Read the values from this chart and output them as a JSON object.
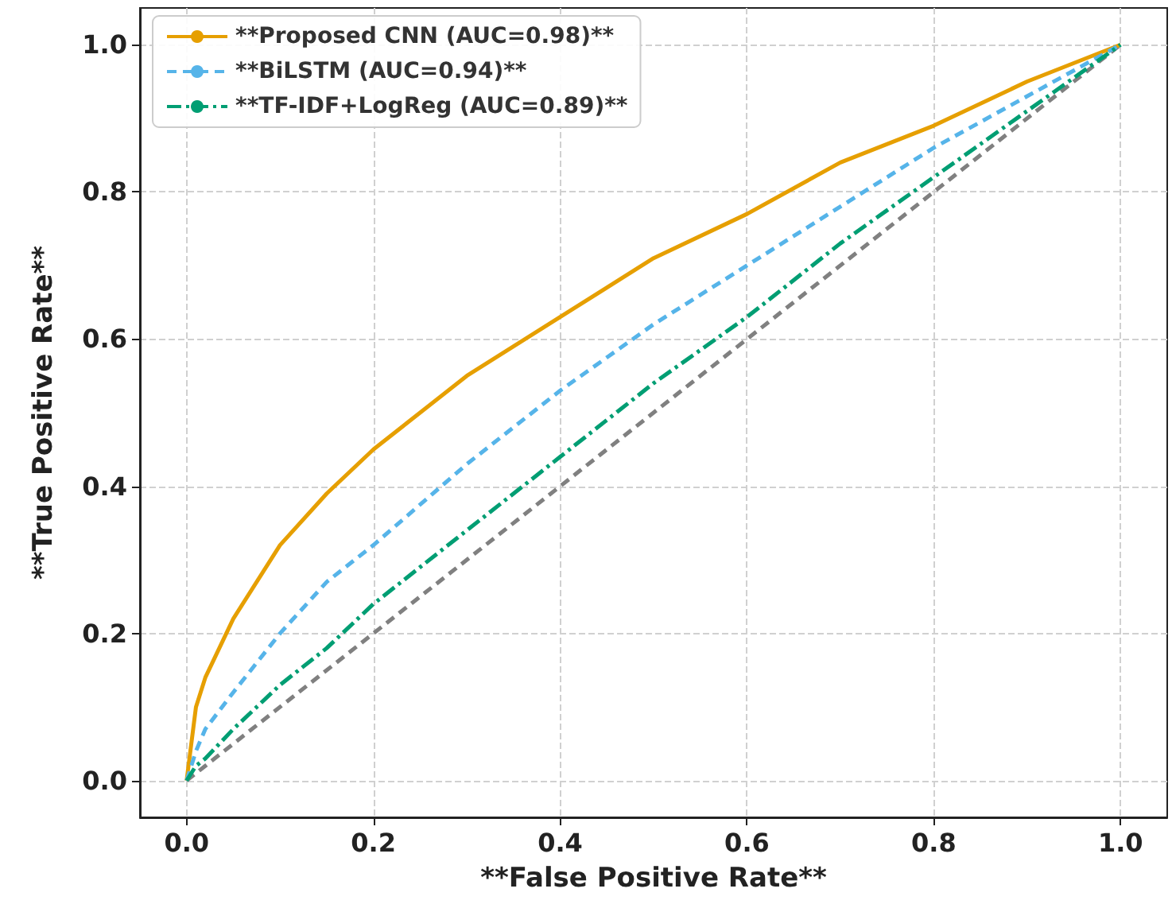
{
  "chart_data": {
    "type": "line",
    "xlabel": "**False Positive Rate**",
    "ylabel": "**True Positive Rate**",
    "x": [
      0,
      0.01,
      0.02,
      0.05,
      0.1,
      0.15,
      0.2,
      0.3,
      0.4,
      0.5,
      0.6,
      0.7,
      0.8,
      0.9,
      1.0
    ],
    "series": [
      {
        "name": "**Proposed CNN (AUC=0.98)**",
        "color": "#e69f00",
        "line_style": "solid",
        "values": [
          0,
          0.1,
          0.14,
          0.22,
          0.32,
          0.39,
          0.45,
          0.55,
          0.63,
          0.71,
          0.77,
          0.84,
          0.89,
          0.95,
          1.0
        ]
      },
      {
        "name": "**BiLSTM (AUC=0.94)**",
        "color": "#56b4e9",
        "line_style": "dashed",
        "values": [
          0,
          0.04,
          0.07,
          0.12,
          0.2,
          0.27,
          0.32,
          0.43,
          0.53,
          0.62,
          0.7,
          0.78,
          0.86,
          0.93,
          1.0
        ]
      },
      {
        "name": "**TF-IDF+LogReg (AUC=0.89)**",
        "color": "#009e73",
        "line_style": "dashdot",
        "values": [
          0,
          0.02,
          0.03,
          0.07,
          0.13,
          0.18,
          0.24,
          0.34,
          0.44,
          0.54,
          0.63,
          0.73,
          0.82,
          0.91,
          1.0
        ]
      },
      {
        "color": "#808080",
        "line_style": "dashed",
        "x": [
          0,
          1
        ],
        "values": [
          0,
          1
        ]
      }
    ],
    "xlim": [
      -0.05,
      1.05
    ],
    "ylim": [
      -0.05,
      1.05
    ],
    "xticks": [
      {
        "value": 0,
        "label": "0.0"
      },
      0.2,
      0.4,
      0.6,
      0.8,
      {
        "value": 1,
        "label": "1.0"
      }
    ],
    "yticks": [
      {
        "value": 0,
        "label": "0.0"
      },
      0.2,
      0.4,
      0.6,
      0.8,
      {
        "value": 1,
        "label": "1.0"
      }
    ],
    "grid": true,
    "legend": "top left",
    "marker": "none"
  }
}
